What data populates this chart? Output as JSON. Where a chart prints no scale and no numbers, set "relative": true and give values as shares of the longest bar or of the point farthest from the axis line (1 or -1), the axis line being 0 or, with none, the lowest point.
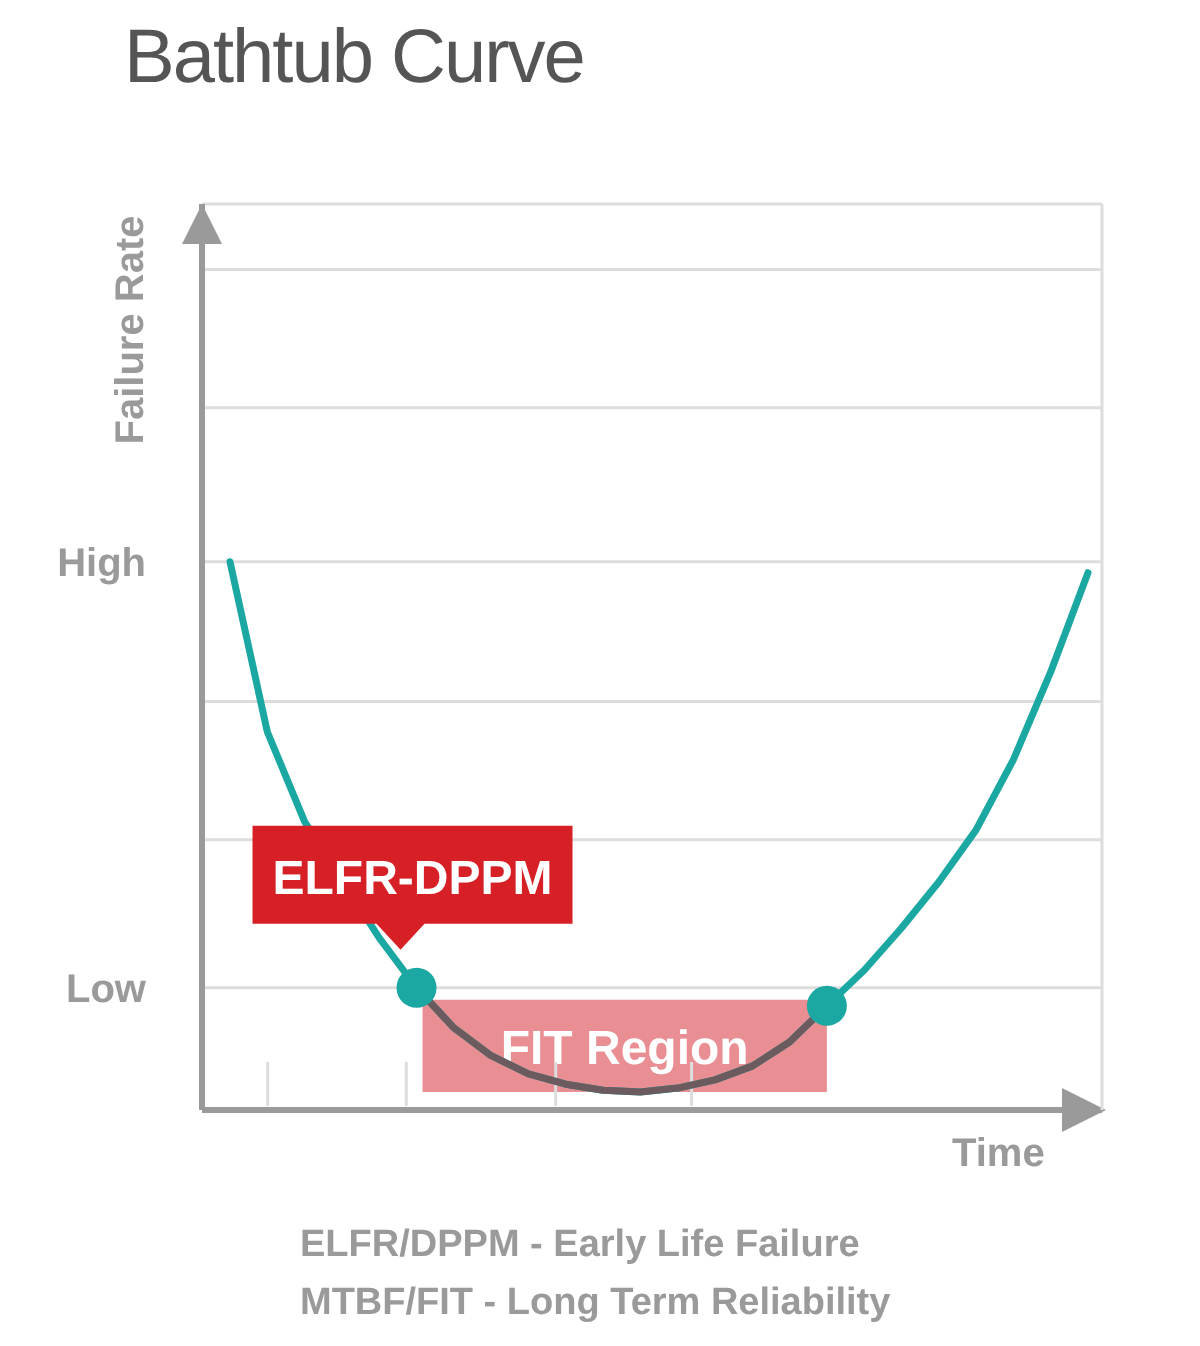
{
  "chart_data": {
    "type": "line",
    "title": "Bathtub Curve",
    "xlabel": "Time",
    "ylabel": "Failure Rate",
    "relative": true,
    "categories": [
      null,
      null,
      null,
      null,
      null,
      null,
      null,
      null,
      null,
      null,
      null,
      null,
      null,
      null,
      null,
      null,
      null,
      null,
      null,
      null,
      null,
      null,
      null,
      null
    ],
    "marker": "none",
    "line_style": "solid",
    "series": [
      {
        "type": "line",
        "color": "#1ba7a2",
        "values": [
          1.0,
          0.69,
          0.526,
          null,
          0.314,
          0.223,
          0.15,
          0.099,
          0.066,
          0.047,
          0.036,
          0.033,
          0.04,
          0.055,
          0.08,
          0.124,
          0.19,
          0.255,
          0.332,
          0.416,
          0.511,
          0.639,
          0.799,
          0.98
        ]
      },
      {
        "type": "line",
        "color": "#6b5b5e",
        "values": [
          null,
          null,
          null,
          null,
          null,
          0.223,
          0.15,
          0.099,
          0.066,
          0.047,
          0.036,
          0.033,
          0.04,
          0.055,
          0.08,
          0.124,
          0.19,
          null,
          null,
          null,
          null,
          null,
          null,
          null
        ]
      }
    ],
    "ref_lines": [
      {
        "axis": "y",
        "value": 0.223,
        "label": "Low",
        "color": "#dddddd"
      },
      {
        "axis": "y",
        "value": 0.493,
        "label": null,
        "color": "#dddddd"
      },
      {
        "axis": "y",
        "value": 0.745,
        "label": null,
        "color": "#dddddd"
      },
      {
        "axis": "y",
        "value": 1.0,
        "label": "High",
        "color": "#dddddd"
      },
      {
        "axis": "y",
        "value": 1.281,
        "label": null,
        "color": "#dddddd"
      },
      {
        "axis": "y",
        "value": 1.533,
        "label": null,
        "color": "#dddddd"
      }
    ],
    "annotations": [
      "ELFR-DPPM",
      "FIT Region",
      "ELFR/DPPM - Early Life Failure",
      "MTBF/FIT - Long Term Reliability"
    ]
  }
}
